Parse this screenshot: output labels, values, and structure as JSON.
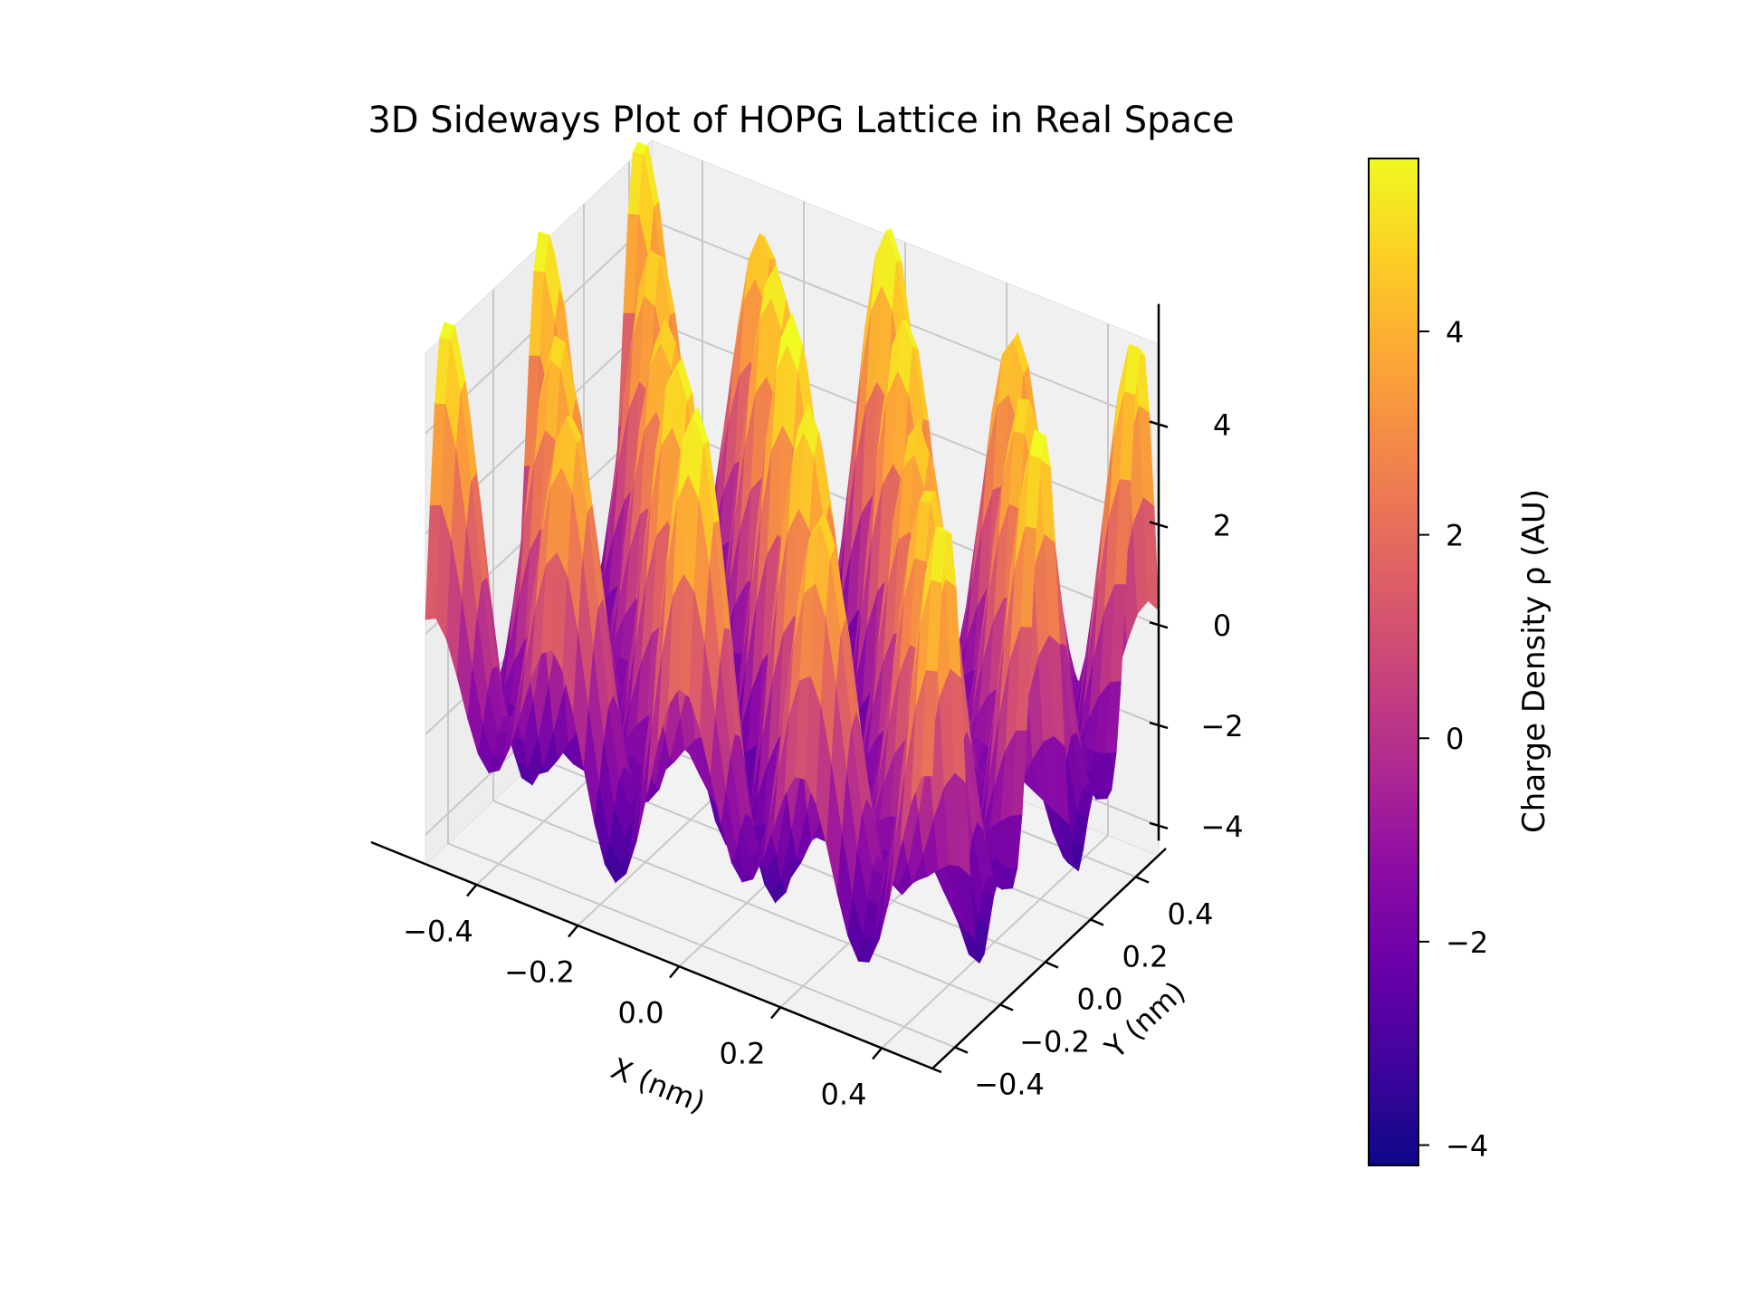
{
  "chart_data": {
    "type": "surface",
    "title": "3D Sideways Plot of HOPG Lattice in Real Space",
    "xlabel": "X (nm)",
    "ylabel": "Y (nm)",
    "zlabel": "",
    "xlim": [
      -0.5,
      0.5
    ],
    "ylim": [
      -0.5,
      0.5
    ],
    "zlim": [
      -4.6,
      5.6
    ],
    "x_ticks": [
      "−0.4",
      "−0.2",
      "0.0",
      "0.2",
      "0.4"
    ],
    "x_tick_values": [
      -0.4,
      -0.2,
      0.0,
      0.2,
      0.4
    ],
    "y_ticks": [
      "−0.4",
      "−0.2",
      "0.0",
      "0.2",
      "0.4"
    ],
    "y_tick_values": [
      -0.4,
      -0.2,
      0.0,
      0.2,
      0.4
    ],
    "z_ticks": [
      "−4",
      "−2",
      "0",
      "2",
      "4"
    ],
    "z_tick_values": [
      -4,
      -2,
      0,
      2,
      4
    ],
    "surface_function": "hexagonal lattice: sum of three cosine waves at 120 degrees, lattice constant ~0.246 nm",
    "grid": true,
    "colormap": "plasma",
    "colorbar": {
      "label": "Charge Density ρ (AU)",
      "range": [
        -4.2,
        5.7
      ],
      "ticks": [
        "−4",
        "−2",
        "0",
        "2",
        "4"
      ],
      "tick_values": [
        -4,
        -2,
        0,
        2,
        4
      ]
    }
  }
}
